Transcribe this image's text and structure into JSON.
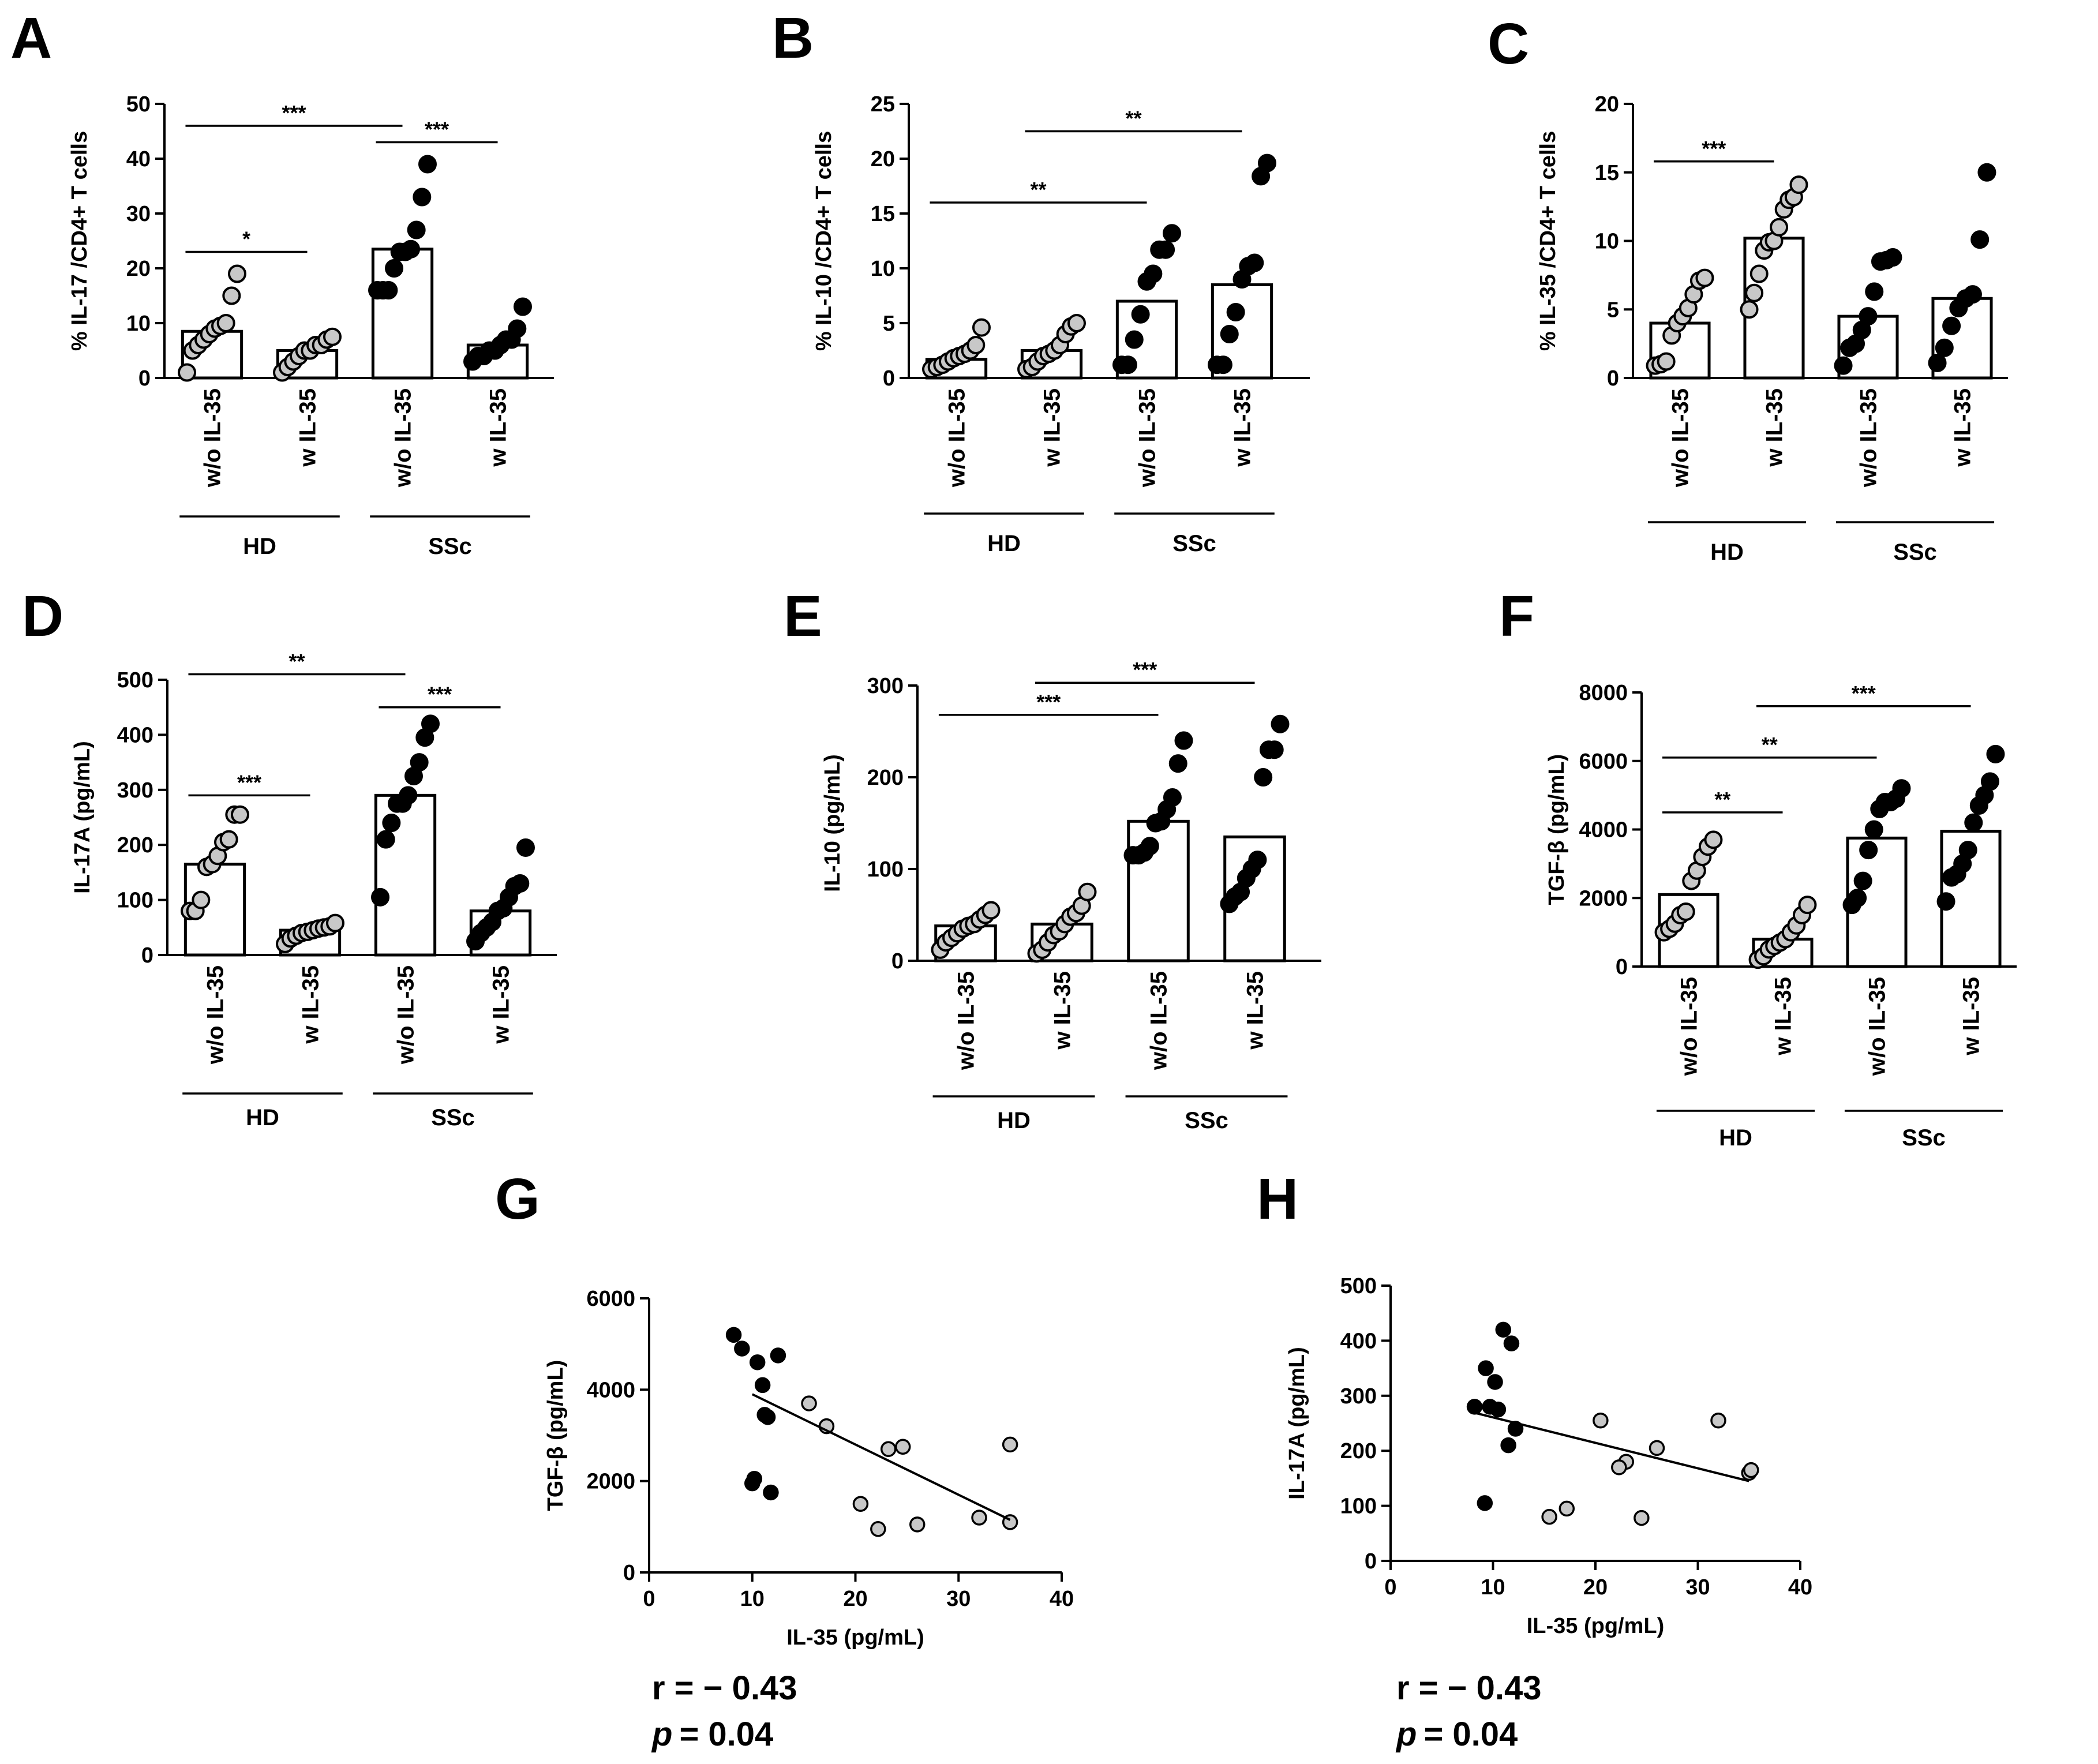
{
  "chart_data": [
    {
      "panel": "A",
      "type": "bar",
      "ylabel": "% IL-17 /CD4+ T cells",
      "ylim": [
        0,
        50
      ],
      "yticks": [
        0,
        10,
        20,
        30,
        40,
        50
      ],
      "categories": [
        "w/o IL-35",
        "w IL-35",
        "w/o IL-35",
        "w IL-35"
      ],
      "groups": [
        {
          "name": "HD",
          "categories": [
            0,
            1
          ]
        },
        {
          "name": "SSc",
          "categories": [
            2,
            3
          ]
        }
      ],
      "means": [
        8.5,
        5.0,
        23.5,
        6.0
      ],
      "points": [
        {
          "color": "#c8c8c8",
          "values": [
            1,
            5,
            6,
            7,
            8,
            9,
            9.5,
            10,
            15,
            19
          ]
        },
        {
          "color": "#c8c8c8",
          "values": [
            1,
            2,
            3,
            4,
            5,
            5,
            6,
            6,
            7,
            7.5
          ]
        },
        {
          "color": "#000000",
          "values": [
            16,
            16,
            16,
            20,
            23,
            23,
            23.5,
            27,
            33,
            39
          ]
        },
        {
          "color": "#000000",
          "values": [
            3,
            4,
            4,
            5,
            5,
            6,
            7,
            7,
            9,
            13
          ]
        }
      ],
      "significance": [
        {
          "from": 0,
          "to": 1,
          "label": "*",
          "y": 23
        },
        {
          "from": 0,
          "to": 2,
          "label": "***",
          "y": 46
        },
        {
          "from": 2,
          "to": 3,
          "label": "***",
          "y": 43
        }
      ]
    },
    {
      "panel": "B",
      "type": "bar",
      "ylabel": "% IL-10 /CD4+ T cells",
      "ylim": [
        0,
        25
      ],
      "yticks": [
        0,
        5,
        10,
        15,
        20,
        25
      ],
      "categories": [
        "w/o IL-35",
        "w IL-35",
        "w/o IL-35",
        "w IL-35"
      ],
      "groups": [
        {
          "name": "HD",
          "categories": [
            0,
            1
          ]
        },
        {
          "name": "SSc",
          "categories": [
            2,
            3
          ]
        }
      ],
      "means": [
        1.7,
        2.5,
        7.0,
        8.5
      ],
      "points": [
        {
          "color": "#c8c8c8",
          "values": [
            0.8,
            1.0,
            1.2,
            1.5,
            1.8,
            2.0,
            2.2,
            2.5,
            3.0,
            4.6
          ]
        },
        {
          "color": "#c8c8c8",
          "values": [
            0.8,
            1.0,
            1.5,
            2.0,
            2.2,
            2.5,
            3.0,
            4.0,
            4.7,
            5.0
          ]
        },
        {
          "color": "#000000",
          "values": [
            1.2,
            1.2,
            3.5,
            5.8,
            8.8,
            9.5,
            11.7,
            11.7,
            13.2
          ]
        },
        {
          "color": "#000000",
          "values": [
            1.2,
            1.2,
            4.0,
            6.0,
            9.0,
            10.2,
            10.5,
            18.4,
            19.6
          ]
        }
      ],
      "significance": [
        {
          "from": 0,
          "to": 2,
          "label": "**",
          "y": 16
        },
        {
          "from": 1,
          "to": 3,
          "label": "**",
          "y": 22.5
        }
      ]
    },
    {
      "panel": "C",
      "type": "bar",
      "ylabel": "% IL-35 /CD4+ T cells",
      "ylim": [
        0,
        20
      ],
      "yticks": [
        0,
        5,
        10,
        15,
        20
      ],
      "categories": [
        "w/o IL-35",
        "w IL-35",
        "w/o IL-35",
        "w IL-35"
      ],
      "groups": [
        {
          "name": "HD",
          "categories": [
            0,
            1
          ]
        },
        {
          "name": "SSc",
          "categories": [
            2,
            3
          ]
        }
      ],
      "means": [
        4.0,
        10.2,
        4.5,
        5.8
      ],
      "points": [
        {
          "color": "#c8c8c8",
          "values": [
            0.9,
            1.0,
            1.2,
            3.1,
            4.0,
            4.5,
            5.1,
            6.1,
            7.1,
            7.3
          ]
        },
        {
          "color": "#c8c8c8",
          "values": [
            5.0,
            6.2,
            7.6,
            9.3,
            9.9,
            10.0,
            11.0,
            12.3,
            13.0,
            13.2,
            14.1
          ]
        },
        {
          "color": "#000000",
          "values": [
            0.9,
            2.2,
            2.5,
            3.5,
            4.5,
            6.3,
            8.5,
            8.6,
            8.8
          ]
        },
        {
          "color": "#000000",
          "values": [
            1.1,
            2.2,
            3.8,
            5.1,
            5.8,
            6.1,
            10.1,
            15.0
          ]
        }
      ],
      "significance": [
        {
          "from": 0,
          "to": 1,
          "label": "***",
          "y": 15.8
        }
      ]
    },
    {
      "panel": "D",
      "type": "bar",
      "ylabel": "IL-17A (pg/mL)",
      "ylim": [
        0,
        500
      ],
      "yticks": [
        0,
        100,
        200,
        300,
        400,
        500
      ],
      "categories": [
        "w/o IL-35",
        "w IL-35",
        "w/o IL-35",
        "w IL-35"
      ],
      "groups": [
        {
          "name": "HD",
          "categories": [
            0,
            1
          ]
        },
        {
          "name": "SSc",
          "categories": [
            2,
            3
          ]
        }
      ],
      "means": [
        165,
        45,
        290,
        80
      ],
      "points": [
        {
          "color": "#c8c8c8",
          "values": [
            80,
            80,
            100,
            160,
            165,
            180,
            205,
            210,
            255,
            255
          ]
        },
        {
          "color": "#c8c8c8",
          "values": [
            20,
            30,
            35,
            40,
            42,
            45,
            48,
            50,
            52,
            58
          ]
        },
        {
          "color": "#000000",
          "values": [
            105,
            210,
            240,
            275,
            275,
            290,
            325,
            350,
            395,
            420
          ]
        },
        {
          "color": "#000000",
          "values": [
            25,
            40,
            50,
            60,
            80,
            85,
            105,
            125,
            130,
            195
          ]
        }
      ],
      "significance": [
        {
          "from": 0,
          "to": 1,
          "label": "***",
          "y": 290
        },
        {
          "from": 0,
          "to": 2,
          "label": "**",
          "y": 510
        },
        {
          "from": 2,
          "to": 3,
          "label": "***",
          "y": 450
        }
      ]
    },
    {
      "panel": "E",
      "type": "bar",
      "ylabel": "IL-10 (pg/mL)",
      "ylim": [
        0,
        300
      ],
      "yticks": [
        0,
        100,
        200,
        300
      ],
      "categories": [
        "w/o IL-35",
        "w IL-35",
        "w/o IL-35",
        "w IL-35"
      ],
      "groups": [
        {
          "name": "HD",
          "categories": [
            0,
            1
          ]
        },
        {
          "name": "SSc",
          "categories": [
            2,
            3
          ]
        }
      ],
      "means": [
        38,
        40,
        152,
        135
      ],
      "points": [
        {
          "color": "#c8c8c8",
          "values": [
            12,
            20,
            25,
            30,
            35,
            38,
            40,
            45,
            50,
            55
          ]
        },
        {
          "color": "#c8c8c8",
          "values": [
            8,
            12,
            20,
            28,
            32,
            40,
            48,
            52,
            60,
            75
          ]
        },
        {
          "color": "#000000",
          "values": [
            115,
            115,
            118,
            125,
            150,
            152,
            165,
            178,
            215,
            240
          ]
        },
        {
          "color": "#000000",
          "values": [
            62,
            70,
            75,
            90,
            100,
            110,
            200,
            230,
            230,
            258
          ]
        }
      ],
      "significance": [
        {
          "from": 0,
          "to": 2,
          "label": "***",
          "y": 268
        },
        {
          "from": 1,
          "to": 3,
          "label": "***",
          "y": 303
        }
      ]
    },
    {
      "panel": "F",
      "type": "bar",
      "ylabel": "TGF-β (pg/mL)",
      "ylim": [
        0,
        8000
      ],
      "yticks": [
        0,
        2000,
        4000,
        6000,
        8000
      ],
      "categories": [
        "w/o IL-35",
        "w IL-35",
        "w/o IL-35",
        "w IL-35"
      ],
      "groups": [
        {
          "name": "HD",
          "categories": [
            0,
            1
          ]
        },
        {
          "name": "SSc",
          "categories": [
            2,
            3
          ]
        }
      ],
      "means": [
        2100,
        800,
        3750,
        3950
      ],
      "points": [
        {
          "color": "#c8c8c8",
          "values": [
            1000,
            1100,
            1250,
            1500,
            1600,
            2500,
            2800,
            3200,
            3500,
            3700
          ]
        },
        {
          "color": "#c8c8c8",
          "values": [
            200,
            300,
            500,
            600,
            700,
            800,
            1000,
            1200,
            1500,
            1800
          ]
        },
        {
          "color": "#000000",
          "values": [
            1800,
            2000,
            2500,
            3400,
            4000,
            4600,
            4800,
            4800,
            4900,
            5200
          ]
        },
        {
          "color": "#000000",
          "values": [
            1900,
            2600,
            2700,
            3000,
            3400,
            4200,
            4700,
            5000,
            5400,
            6200
          ]
        }
      ],
      "significance": [
        {
          "from": 0,
          "to": 1,
          "label": "**",
          "y": 4500
        },
        {
          "from": 0,
          "to": 2,
          "label": "**",
          "y": 6100
        },
        {
          "from": 1,
          "to": 3,
          "label": "***",
          "y": 7600
        }
      ]
    },
    {
      "panel": "G",
      "type": "scatter",
      "xlabel": "IL-35 (pg/mL)",
      "ylabel": "TGF-β (pg/mL)",
      "xlim": [
        0,
        40
      ],
      "xticks": [
        0,
        10,
        20,
        30,
        40
      ],
      "ylim": [
        0,
        6000
      ],
      "yticks": [
        0,
        2000,
        4000,
        6000
      ],
      "series": [
        {
          "name": "SSc",
          "color": "#000000",
          "x": [
            8.2,
            9.0,
            10.5,
            11.0,
            11.5,
            12.5,
            11.2,
            10.2,
            10.0,
            11.8
          ],
          "y": [
            5200,
            4900,
            4600,
            4100,
            3400,
            4750,
            3450,
            2050,
            1950,
            1750
          ]
        },
        {
          "name": "HD",
          "color": "#c8c8c8",
          "x": [
            15.5,
            17.2,
            23.2,
            24.6,
            35.0,
            20.5,
            22.2,
            26.0,
            32.0,
            35.0
          ],
          "y": [
            3700,
            3200,
            2700,
            2750,
            2800,
            1500,
            950,
            1050,
            1200,
            1100
          ]
        }
      ],
      "fit": {
        "x": [
          10,
          35
        ],
        "y": [
          3900,
          1150
        ]
      },
      "r_text": "r = − 0.43",
      "p_italic": "p",
      "p_value": "= 0.04"
    },
    {
      "panel": "H",
      "type": "scatter",
      "xlabel": "IL-35 (pg/mL)",
      "ylabel": "IL-17A (pg/mL)",
      "xlim": [
        0,
        40
      ],
      "xticks": [
        0,
        10,
        20,
        30,
        40
      ],
      "ylim": [
        0,
        500
      ],
      "yticks": [
        0,
        100,
        200,
        300,
        400,
        500
      ],
      "series": [
        {
          "name": "SSc",
          "color": "#000000",
          "x": [
            11.0,
            11.8,
            9.3,
            10.2,
            8.2,
            9.7,
            10.5,
            12.2,
            11.5,
            9.2
          ],
          "y": [
            420,
            395,
            350,
            325,
            280,
            280,
            275,
            240,
            210,
            105
          ]
        },
        {
          "name": "HD",
          "color": "#c8c8c8",
          "x": [
            20.5,
            26.0,
            32.0,
            35.0,
            35.2,
            23.0,
            22.3,
            17.2,
            15.5,
            24.5
          ],
          "y": [
            255,
            205,
            255,
            160,
            165,
            180,
            170,
            95,
            80,
            78
          ]
        }
      ],
      "fit": {
        "x": [
          8,
          35
        ],
        "y": [
          270,
          145
        ]
      },
      "r_text": "r = − 0.43",
      "p_italic": "p",
      "p_value": "= 0.04"
    }
  ]
}
